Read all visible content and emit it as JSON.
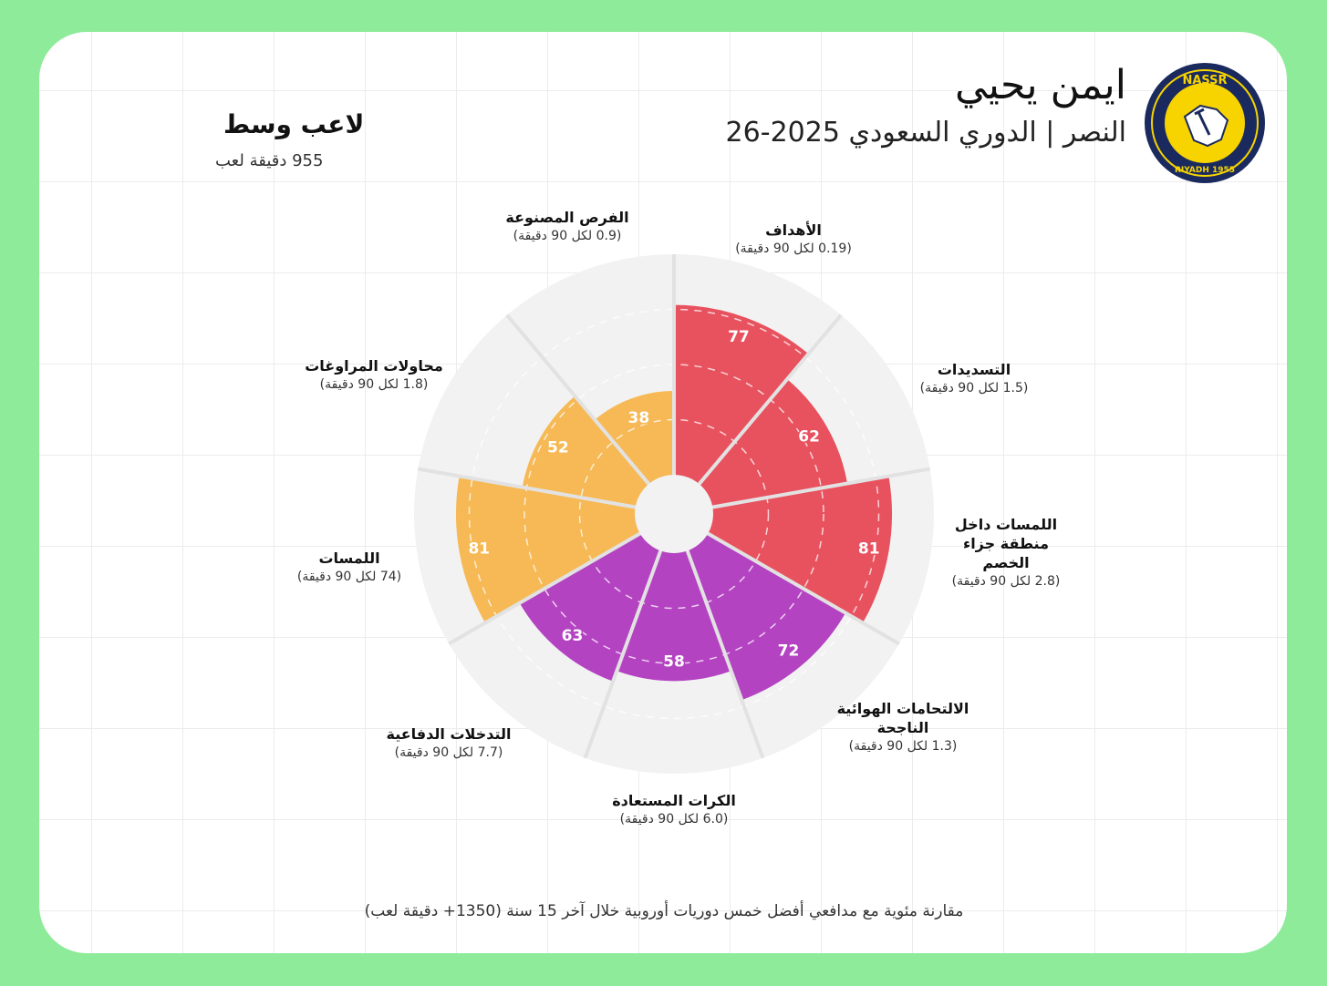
{
  "header": {
    "player_name": "ايمن يحيي",
    "subtitle": "النصر | الدوري السعودي 2025-26",
    "position": "لاعب وسط",
    "minutes": "955 دقيقة لعب"
  },
  "logo": {
    "top_text": "NASSR",
    "bottom_text": "RIYADH 1955"
  },
  "footer": "مقارنة مئوية مع مدافعي أفضل خمس دوريات أوروبية خلال آخر 15 سنة (1350+ دقيقة لعب)",
  "colors": {
    "attack": "#E8525F",
    "defense": "#B443C2",
    "possession": "#F6B955",
    "background": "#F2F2F2",
    "page": "#8DEB9A"
  },
  "chart_data": {
    "type": "pie",
    "subtype": "polar-percentile-pizza",
    "range": [
      0,
      100
    ],
    "gridlines": [
      25,
      50,
      75
    ],
    "metrics": [
      {
        "label": "الأهداف",
        "per90": "(0.19 لكل 90 دقيقة)",
        "value": 77,
        "group": "attack"
      },
      {
        "label": "التسديدات",
        "per90": "(1.5 لكل 90 دقيقة)",
        "value": 62,
        "group": "attack"
      },
      {
        "label": "اللمسات داخل منطقة جزاء الخصم",
        "per90": "(2.8 لكل 90 دقيقة)",
        "value": 81,
        "group": "attack"
      },
      {
        "label": "الالتحامات الهوائية الناجحة",
        "per90": "(1.3 لكل 90 دقيقة)",
        "value": 72,
        "group": "defense"
      },
      {
        "label": "الكرات المستعادة",
        "per90": "(6.0 لكل 90 دقيقة)",
        "value": 58,
        "group": "defense"
      },
      {
        "label": "التدخلات الدفاعية",
        "per90": "(7.7 لكل 90 دقيقة)",
        "value": 63,
        "group": "defense"
      },
      {
        "label": "اللمسات",
        "per90": "(74 لكل 90 دقيقة)",
        "value": 81,
        "group": "possession"
      },
      {
        "label": "محاولات المراوغات",
        "per90": "(1.8 لكل 90 دقيقة)",
        "value": 52,
        "group": "possession"
      },
      {
        "label": "الفرص المصنوعة",
        "per90": "(0.9 لكل 90 دقيقة)",
        "value": 38,
        "group": "possession"
      }
    ]
  }
}
